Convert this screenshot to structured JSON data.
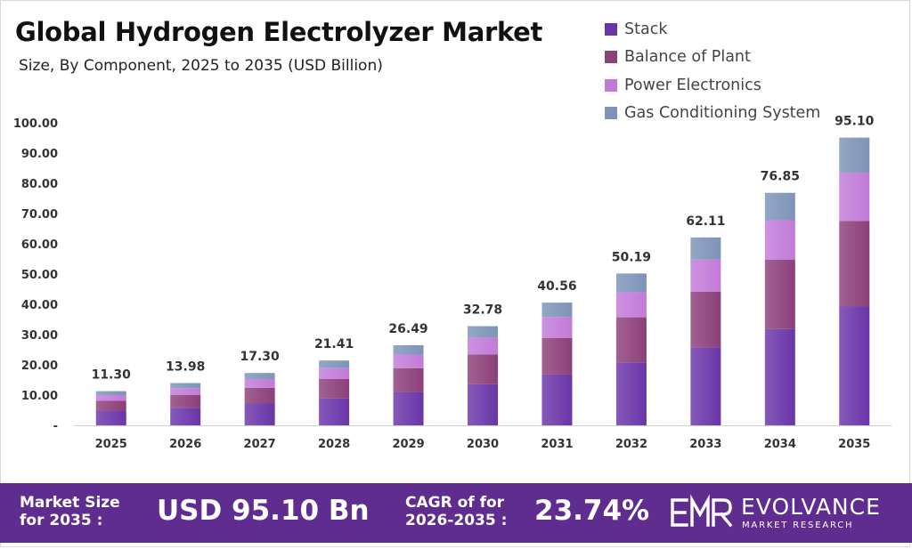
{
  "title": "Global Hydrogen Electrolyzer Market",
  "subtitle": "Size, By Component, 2025 to 2035 (USD Billion)",
  "colors": {
    "stack": "#6a35a8",
    "balance_of_plant": "#8c3f79",
    "power_electronics": "#c27ad8",
    "gas_conditioning": "#7d93b8",
    "footer_bg": "#5f2d90"
  },
  "chart_data": {
    "type": "bar",
    "stacked": true,
    "categories": [
      "2025",
      "2026",
      "2027",
      "2028",
      "2029",
      "2030",
      "2031",
      "2032",
      "2033",
      "2034",
      "2035"
    ],
    "series": [
      {
        "name": "Stack",
        "values": [
          4.7,
          5.8,
          7.2,
          8.9,
          11.0,
          13.6,
          16.8,
          20.8,
          25.7,
          31.8,
          39.4
        ]
      },
      {
        "name": "Balance of Plant",
        "values": [
          3.4,
          4.2,
          5.2,
          6.4,
          7.9,
          9.8,
          12.1,
          14.9,
          18.5,
          22.9,
          28.1
        ]
      },
      {
        "name": "Power Electronics",
        "values": [
          1.9,
          2.3,
          2.9,
          3.6,
          4.5,
          5.6,
          6.9,
          8.4,
          10.6,
          13.1,
          16.0
        ]
      },
      {
        "name": "Gas Conditioning System",
        "values": [
          1.3,
          1.68,
          2.0,
          2.51,
          3.09,
          3.78,
          4.76,
          6.09,
          7.31,
          9.05,
          11.6
        ]
      }
    ],
    "totals": [
      "11.30",
      "13.98",
      "17.30",
      "21.41",
      "26.49",
      "32.78",
      "40.56",
      "50.19",
      "62.11",
      "76.85",
      "95.10"
    ],
    "y_ticks": [
      "-",
      "10.00",
      "20.00",
      "30.00",
      "40.00",
      "50.00",
      "60.00",
      "70.00",
      "80.00",
      "90.00",
      "100.00"
    ],
    "ylim": [
      0,
      100
    ],
    "grid": false,
    "legend_position": "top-right"
  },
  "footer": {
    "market_size_label_line1": "Market Size",
    "market_size_label_line2": "for 2035 :",
    "market_size_value": "USD 95.10 Bn",
    "cagr_label_line1": "CAGR of for",
    "cagr_label_line2": "2026-2035 :",
    "cagr_value": "23.74%",
    "brand_name": "EVOLVANCE",
    "brand_sub": "MARKET RESEARCH"
  }
}
